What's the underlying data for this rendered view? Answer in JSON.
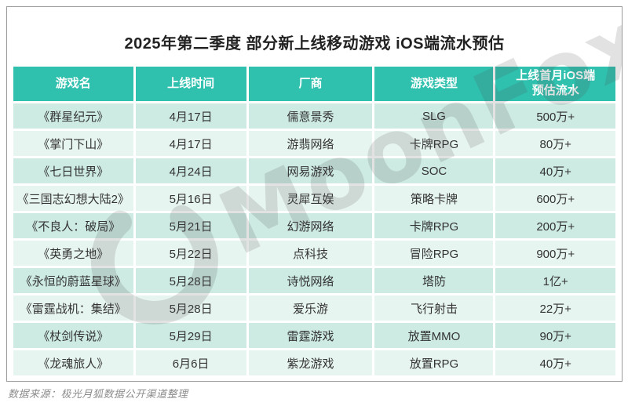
{
  "title": "2025年第二季度 部分新上线移动游戏 iOS端流水预估",
  "watermark": {
    "brand": "MoonFox",
    "moon_icon": "crescent-moon-icon",
    "fox_icon": "fox-ear-icon"
  },
  "source_note": "数据来源：极光月狐数据公开渠道整理",
  "colors": {
    "header_bg": "#2fc0ae",
    "row_dark": "#cdeae3",
    "row_light": "#e7f5f0",
    "header_text": "#ffffff",
    "cell_text": "#333333",
    "card_border": "#9a9a9a"
  },
  "chart_data": {
    "type": "table",
    "title": "2025年第二季度 部分新上线移动游戏 iOS端流水预估",
    "columns": [
      "游戏名",
      "上线时间",
      "厂商",
      "游戏类型",
      "上线首月iOS端\n预估流水"
    ],
    "rows": [
      [
        "《群星纪元》",
        "4月17日",
        "儒意景秀",
        "SLG",
        "500万+"
      ],
      [
        "《掌门下山》",
        "4月17日",
        "游翡网络",
        "卡牌RPG",
        "80万+"
      ],
      [
        "《七日世界》",
        "4月24日",
        "网易游戏",
        "SOC",
        "40万+"
      ],
      [
        "《三国志幻想大陆2》",
        "5月16日",
        "灵犀互娱",
        "策略卡牌",
        "600万+"
      ],
      [
        "《不良人：破局》",
        "5月21日",
        "幻游网络",
        "卡牌RPG",
        "200万+"
      ],
      [
        "《英勇之地》",
        "5月22日",
        "点科技",
        "冒险RPG",
        "900万+"
      ],
      [
        "《永恒的蔚蓝星球》",
        "5月28日",
        "诗悦网络",
        "塔防",
        "1亿+"
      ],
      [
        "《雷霆战机：集结》",
        "5月28日",
        "爱乐游",
        "飞行射击",
        "22万+"
      ],
      [
        "《杖剑传说》",
        "5月29日",
        "雷霆游戏",
        "放置MMO",
        "90万+"
      ],
      [
        "《龙魂旅人》",
        "6月6日",
        "紫龙游戏",
        "放置RPG",
        "40万+"
      ]
    ],
    "source": "数据来源：极光月狐数据公开渠道整理"
  }
}
